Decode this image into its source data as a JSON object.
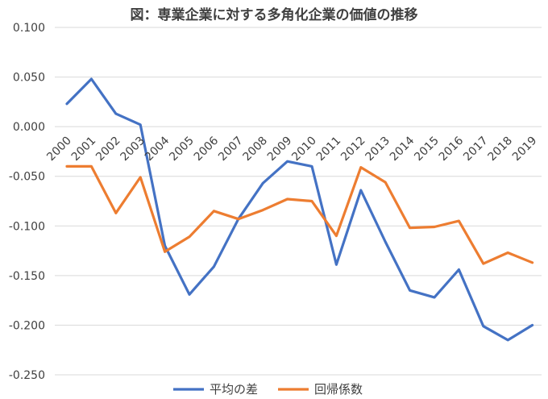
{
  "chart_data": {
    "type": "line",
    "title": "図：専業企業に対する多角化企業の価値の推移",
    "categories": [
      "2000",
      "2001",
      "2002",
      "2003",
      "2004",
      "2005",
      "2006",
      "2007",
      "2008",
      "2009",
      "2010",
      "2011",
      "2012",
      "2013",
      "2014",
      "2015",
      "2016",
      "2017",
      "2018",
      "2019"
    ],
    "series": [
      {
        "name": "平均の差",
        "color": "#4472C4",
        "values": [
          0.023,
          0.048,
          0.013,
          0.002,
          -0.12,
          -0.169,
          -0.141,
          -0.093,
          -0.057,
          -0.035,
          -0.04,
          -0.139,
          -0.064,
          -0.116,
          -0.165,
          -0.172,
          -0.144,
          -0.201,
          -0.215,
          -0.2
        ]
      },
      {
        "name": "回帰係数",
        "color": "#ED7D31",
        "values": [
          -0.04,
          -0.04,
          -0.087,
          -0.051,
          -0.126,
          -0.111,
          -0.085,
          -0.093,
          -0.084,
          -0.073,
          -0.075,
          -0.11,
          -0.041,
          -0.056,
          -0.102,
          -0.101,
          -0.095,
          -0.138,
          -0.127,
          -0.137
        ]
      }
    ],
    "yticks": [
      "0.100",
      "0.050",
      "0.000",
      "-0.050",
      "-0.100",
      "-0.150",
      "-0.200",
      "-0.250"
    ],
    "ylim": [
      -0.25,
      0.1
    ],
    "grid": true,
    "legend": "bottom",
    "xlabel": "",
    "ylabel": ""
  }
}
